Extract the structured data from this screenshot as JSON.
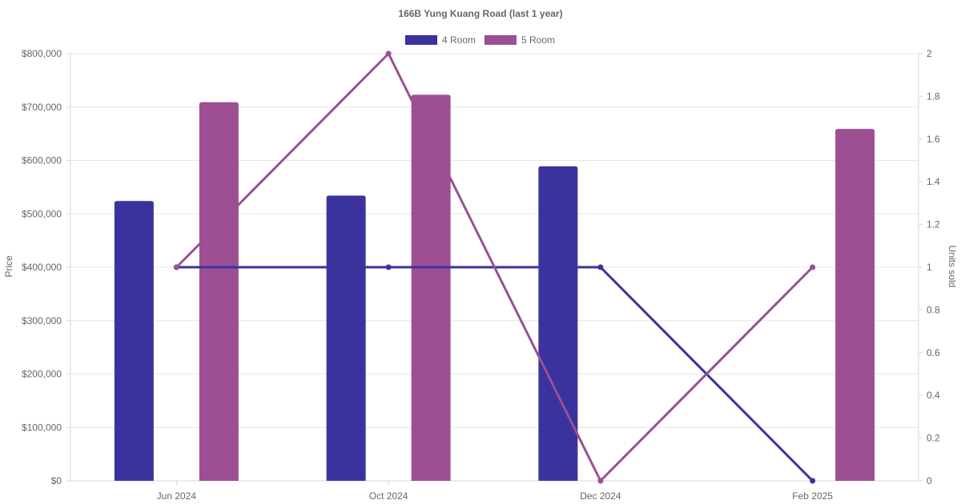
{
  "chart_data": {
    "type": "bar",
    "title": "166B Yung Kuang Road (last 1 year)",
    "categories": [
      "Jun 2024",
      "Oct 2024",
      "Dec 2024",
      "Feb 2025"
    ],
    "ylabel": "Price",
    "y2label": "Units sold",
    "ylim": [
      0,
      800000
    ],
    "y2lim": [
      0,
      2
    ],
    "yticks": [
      "$0",
      "$100,000",
      "$200,000",
      "$300,000",
      "$400,000",
      "$500,000",
      "$600,000",
      "$700,000",
      "$800,000"
    ],
    "y2ticks": [
      "0",
      "0.2",
      "0.4",
      "0.6",
      "0.8",
      "1",
      "1.2",
      "1.4",
      "1.6",
      "1.8",
      "2"
    ],
    "grid": true,
    "legend_position": "top-center",
    "series": [
      {
        "name": "4 Room",
        "color": "#3a339e",
        "price_values": [
          524000,
          534000,
          589000,
          null
        ],
        "units_sold": [
          1,
          1,
          1,
          0
        ]
      },
      {
        "name": "5 Room",
        "color": "#9c4f93",
        "price_values": [
          709000,
          723000,
          null,
          659000
        ],
        "units_sold": [
          1,
          2,
          0,
          1
        ]
      }
    ]
  }
}
